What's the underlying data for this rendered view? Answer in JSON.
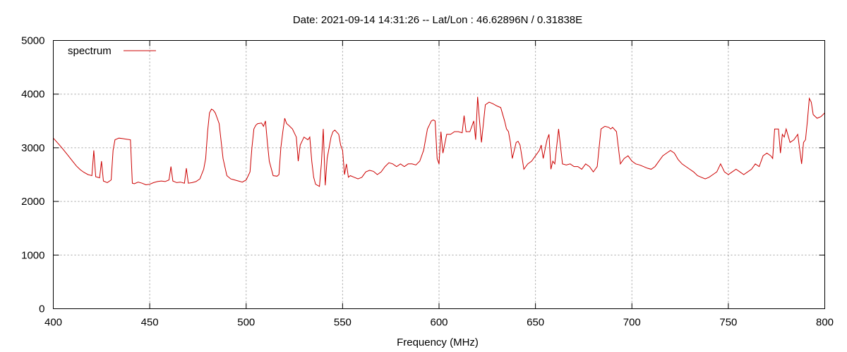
{
  "chart_data": {
    "type": "line",
    "title": "Date: 2021-09-14 14:31:26  --  Lat/Lon : 46.62896N / 0.31838E",
    "xlabel": "Frequency (MHz)",
    "ylabel": "",
    "xlim": [
      400,
      800
    ],
    "ylim": [
      0,
      5000
    ],
    "x_ticks": [
      400,
      450,
      500,
      550,
      600,
      650,
      700,
      750,
      800
    ],
    "y_ticks": [
      0,
      1000,
      2000,
      3000,
      4000,
      5000
    ],
    "grid": true,
    "legend_position": "top-left",
    "colors": {
      "series": "#cc0000",
      "grid": "#a0a0a0",
      "axis": "#000000"
    },
    "series": [
      {
        "name": "spectrum",
        "x": [
          400,
          402,
          404,
          406,
          408,
          410,
          412,
          414,
          416,
          418,
          420,
          421,
          422,
          424,
          425,
          426,
          428,
          430,
          431,
          432,
          434,
          436,
          438,
          440,
          441,
          442,
          444,
          446,
          448,
          450,
          452,
          454,
          456,
          458,
          460,
          461,
          462,
          464,
          466,
          468,
          469,
          470,
          472,
          474,
          476,
          478,
          479,
          480,
          481,
          482,
          483,
          484,
          485,
          486,
          488,
          490,
          492,
          494,
          496,
          498,
          500,
          502,
          503,
          504,
          505,
          506,
          508,
          509,
          510,
          511,
          512,
          514,
          516,
          517,
          518,
          519,
          520,
          521,
          522,
          524,
          526,
          527,
          528,
          530,
          532,
          533,
          534,
          535,
          536,
          538,
          539,
          540,
          541,
          542,
          544,
          545,
          546,
          548,
          549,
          550,
          551,
          552,
          553,
          554,
          556,
          558,
          560,
          562,
          564,
          566,
          568,
          570,
          572,
          574,
          576,
          578,
          580,
          582,
          584,
          586,
          588,
          590,
          592,
          594,
          596,
          597,
          598,
          599,
          600,
          601,
          602,
          604,
          606,
          608,
          610,
          612,
          613,
          614,
          616,
          618,
          619,
          620,
          621,
          622,
          624,
          626,
          628,
          630,
          632,
          634,
          635,
          636,
          637,
          638,
          640,
          641,
          642,
          644,
          646,
          648,
          650,
          652,
          653,
          654,
          656,
          657,
          658,
          659,
          660,
          662,
          664,
          666,
          668,
          670,
          672,
          674,
          676,
          678,
          679,
          680,
          682,
          684,
          686,
          688,
          689,
          690,
          692,
          694,
          696,
          698,
          700,
          702,
          704,
          706,
          708,
          710,
          712,
          714,
          716,
          718,
          720,
          722,
          724,
          726,
          728,
          730,
          732,
          734,
          736,
          738,
          740,
          742,
          744,
          746,
          748,
          750,
          752,
          754,
          756,
          758,
          760,
          762,
          764,
          766,
          768,
          770,
          772,
          773,
          774,
          776,
          777,
          778,
          779,
          780,
          782,
          784,
          786,
          788,
          789,
          790,
          791,
          792,
          793,
          794,
          796,
          798,
          800
        ],
        "values": [
          3180,
          3100,
          3020,
          2930,
          2840,
          2750,
          2660,
          2590,
          2540,
          2500,
          2480,
          2950,
          2460,
          2440,
          2750,
          2380,
          2350,
          2400,
          2950,
          3150,
          3180,
          3170,
          3160,
          3150,
          2340,
          2330,
          2360,
          2340,
          2310,
          2320,
          2350,
          2370,
          2380,
          2370,
          2400,
          2650,
          2380,
          2350,
          2360,
          2340,
          2620,
          2340,
          2350,
          2370,
          2420,
          2600,
          2800,
          3300,
          3650,
          3720,
          3700,
          3650,
          3550,
          3450,
          2800,
          2480,
          2420,
          2400,
          2380,
          2360,
          2400,
          2550,
          3000,
          3350,
          3420,
          3450,
          3460,
          3400,
          3500,
          3100,
          2750,
          2480,
          2470,
          2500,
          3000,
          3300,
          3550,
          3450,
          3420,
          3350,
          3200,
          2750,
          3050,
          3200,
          3150,
          3200,
          2750,
          2450,
          2320,
          2280,
          2700,
          3350,
          2300,
          2800,
          3200,
          3300,
          3330,
          3250,
          3050,
          2950,
          2500,
          2700,
          2450,
          2480,
          2450,
          2420,
          2450,
          2550,
          2580,
          2560,
          2500,
          2550,
          2650,
          2720,
          2700,
          2650,
          2700,
          2650,
          2700,
          2700,
          2680,
          2750,
          2950,
          3350,
          3500,
          3520,
          3500,
          2800,
          2700,
          3300,
          2900,
          3250,
          3250,
          3300,
          3300,
          3280,
          3600,
          3300,
          3300,
          3500,
          3150,
          3950,
          3500,
          3100,
          3800,
          3850,
          3820,
          3780,
          3750,
          3500,
          3350,
          3300,
          3100,
          2800,
          3100,
          3120,
          3050,
          2600,
          2700,
          2750,
          2850,
          2950,
          3050,
          2800,
          3150,
          3250,
          2600,
          2750,
          2700,
          3350,
          2700,
          2680,
          2700,
          2650,
          2650,
          2600,
          2700,
          2650,
          2600,
          2550,
          2650,
          3350,
          3400,
          3380,
          3350,
          3380,
          3300,
          2700,
          2800,
          2850,
          2750,
          2700,
          2680,
          2650,
          2620,
          2600,
          2650,
          2750,
          2850,
          2900,
          2950,
          2900,
          2780,
          2700,
          2650,
          2600,
          2550,
          2480,
          2450,
          2420,
          2450,
          2500,
          2550,
          2700,
          2550,
          2500,
          2550,
          2600,
          2550,
          2500,
          2550,
          2600,
          2700,
          2650,
          2850,
          2900,
          2850,
          2800,
          3350,
          3350,
          2900,
          3250,
          3200,
          3350,
          3100,
          3150,
          3250,
          2700,
          3100,
          3150,
          3500,
          3920,
          3850,
          3620,
          3550,
          3580,
          3650
        ]
      }
    ]
  }
}
